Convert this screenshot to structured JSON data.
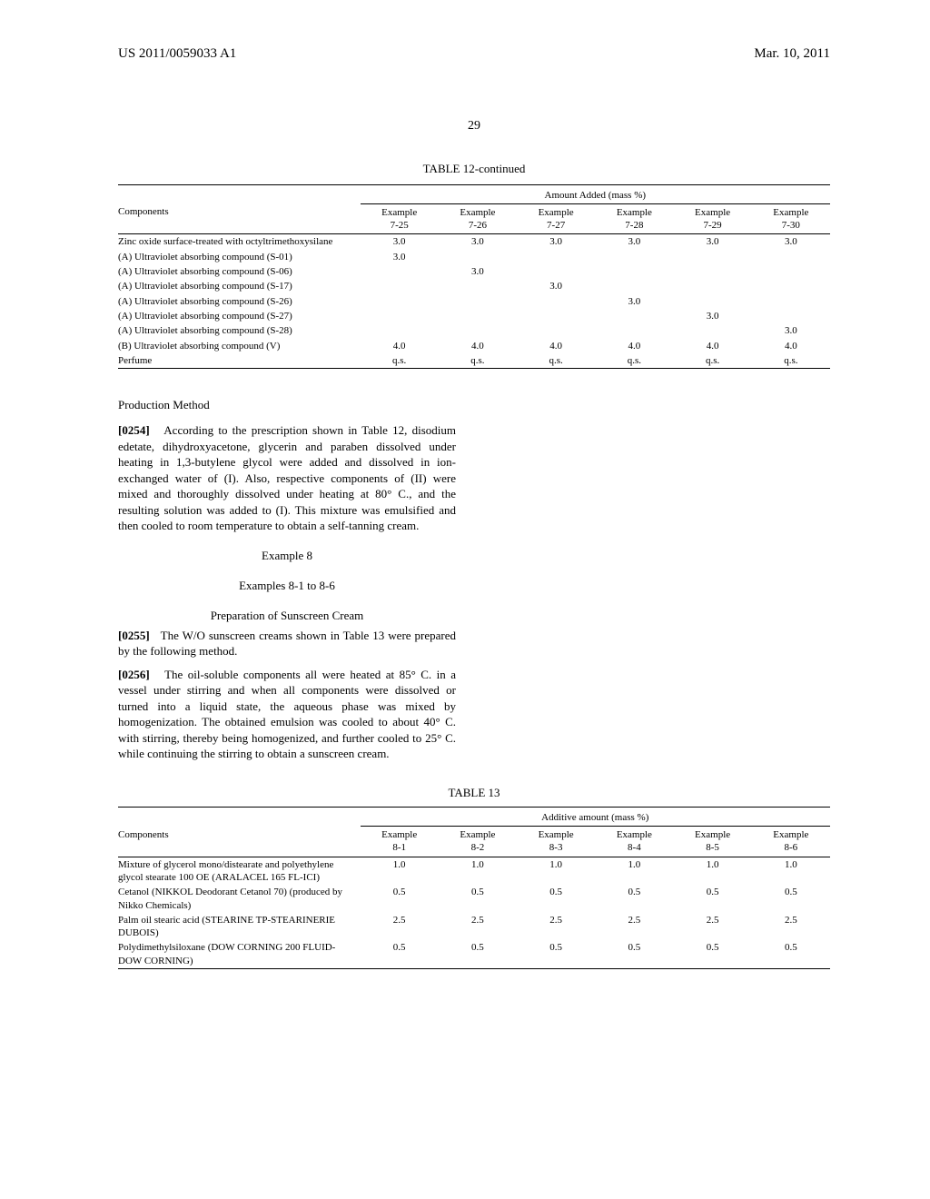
{
  "header": {
    "pubNumber": "US 2011/0059033 A1",
    "pubDate": "Mar. 10, 2011"
  },
  "pageNumber": "29",
  "table12": {
    "caption": "TABLE 12-continued",
    "superHeader": "Amount Added (mass %)",
    "componentsLabel": "Components",
    "columns": [
      "Example\n7-25",
      "Example\n7-26",
      "Example\n7-27",
      "Example\n7-28",
      "Example\n7-29",
      "Example\n7-30"
    ],
    "rows": [
      {
        "label": "Zinc oxide surface-treated with octyltrimethoxysilane",
        "vals": [
          "3.0",
          "3.0",
          "3.0",
          "3.0",
          "3.0",
          "3.0"
        ]
      },
      {
        "label": "(A) Ultraviolet absorbing compound (S-01)",
        "vals": [
          "3.0",
          "",
          "",
          "",
          "",
          ""
        ]
      },
      {
        "label": "(A) Ultraviolet absorbing compound (S-06)",
        "vals": [
          "",
          "3.0",
          "",
          "",
          "",
          ""
        ]
      },
      {
        "label": "(A) Ultraviolet absorbing compound (S-17)",
        "vals": [
          "",
          "",
          "3.0",
          "",
          "",
          ""
        ]
      },
      {
        "label": "(A) Ultraviolet absorbing compound (S-26)",
        "vals": [
          "",
          "",
          "",
          "3.0",
          "",
          ""
        ]
      },
      {
        "label": "(A) Ultraviolet absorbing compound (S-27)",
        "vals": [
          "",
          "",
          "",
          "",
          "3.0",
          ""
        ]
      },
      {
        "label": "(A) Ultraviolet absorbing compound (S-28)",
        "vals": [
          "",
          "",
          "",
          "",
          "",
          "3.0"
        ]
      },
      {
        "label": "(B) Ultraviolet absorbing compound (V)",
        "vals": [
          "4.0",
          "4.0",
          "4.0",
          "4.0",
          "4.0",
          "4.0"
        ]
      },
      {
        "label": "Perfume",
        "vals": [
          "q.s.",
          "q.s.",
          "q.s.",
          "q.s.",
          "q.s.",
          "q.s."
        ]
      }
    ]
  },
  "productionMethod": {
    "heading": "Production Method",
    "para": {
      "num": "[0254]",
      "text": "According to the prescription shown in Table 12, disodium edetate, dihydroxyacetone, glycerin and paraben dissolved under heating in 1,3-butylene glycol were added and dissolved in ion-exchanged water of (I). Also, respective components of (II) were mixed and thoroughly dissolved under heating at 80° C., and the resulting solution was added to (I). This mixture was emulsified and then cooled to room temperature to obtain a self-tanning cream."
    }
  },
  "example8": {
    "heading1": "Example 8",
    "heading2": "Examples 8-1 to 8-6",
    "heading3": "Preparation of Sunscreen Cream",
    "para1": {
      "num": "[0255]",
      "text": "The W/O sunscreen creams shown in Table 13 were prepared by the following method."
    },
    "para2": {
      "num": "[0256]",
      "text": "The oil-soluble components all were heated at 85° C. in a vessel under stirring and when all components were dissolved or turned into a liquid state, the aqueous phase was mixed by homogenization. The obtained emulsion was cooled to about 40° C. with stirring, thereby being homogenized, and further cooled to 25° C. while continuing the stirring to obtain a sunscreen cream."
    }
  },
  "table13": {
    "caption": "TABLE 13",
    "superHeader": "Additive amount (mass %)",
    "componentsLabel": "Components",
    "columns": [
      "Example\n8-1",
      "Example\n8-2",
      "Example\n8-3",
      "Example\n8-4",
      "Example\n8-5",
      "Example\n8-6"
    ],
    "rows": [
      {
        "label": "Mixture of glycerol mono/distearate and polyethylene glycol stearate 100 OE (ARALACEL 165 FL-ICI)",
        "vals": [
          "1.0",
          "1.0",
          "1.0",
          "1.0",
          "1.0",
          "1.0"
        ]
      },
      {
        "label": "Cetanol (NIKKOL Deodorant Cetanol 70) (produced by Nikko Chemicals)",
        "vals": [
          "0.5",
          "0.5",
          "0.5",
          "0.5",
          "0.5",
          "0.5"
        ]
      },
      {
        "label": "Palm oil stearic acid (STEARINE TP-STEARINERIE DUBOIS)",
        "vals": [
          "2.5",
          "2.5",
          "2.5",
          "2.5",
          "2.5",
          "2.5"
        ]
      },
      {
        "label": "Polydimethylsiloxane (DOW CORNING 200 FLUID-DOW CORNING)",
        "vals": [
          "0.5",
          "0.5",
          "0.5",
          "0.5",
          "0.5",
          "0.5"
        ]
      }
    ]
  }
}
